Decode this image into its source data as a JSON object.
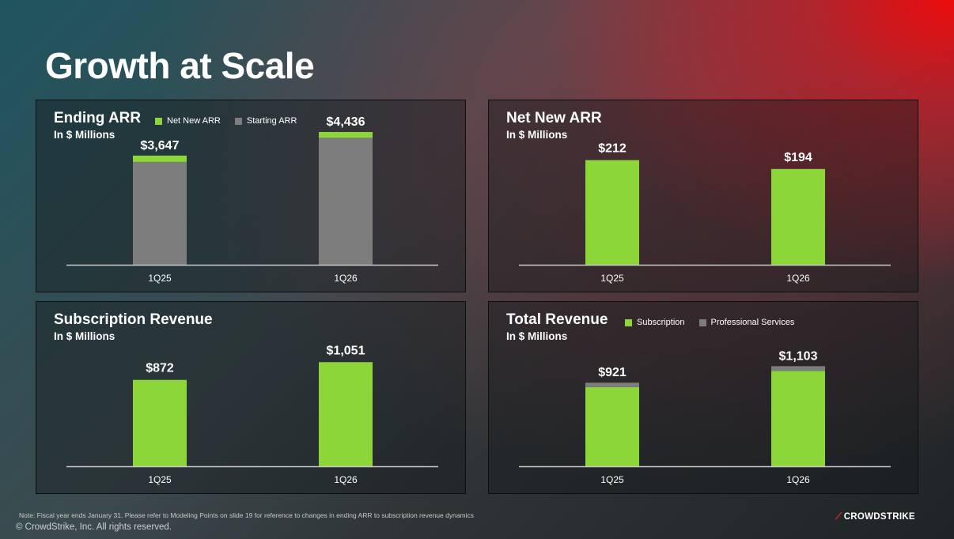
{
  "slide_title": "Growth at Scale",
  "colors": {
    "green": "#8cd63a",
    "gray": "#7d7d7d",
    "axis": "#c9c9c9"
  },
  "panels": {
    "ending_arr": {
      "title": "Ending ARR",
      "subtitle": "In $ Millions",
      "legend": [
        {
          "label": "Net New ARR",
          "color": "#8cd63a"
        },
        {
          "label": "Starting ARR",
          "color": "#7d7d7d"
        }
      ]
    },
    "net_new_arr": {
      "title": "Net New ARR",
      "subtitle": "In $ Millions"
    },
    "sub_rev": {
      "title": "Subscription Revenue",
      "subtitle": "In $ Millions"
    },
    "total_rev": {
      "title": "Total Revenue",
      "subtitle": "In $ Millions",
      "legend": [
        {
          "label": "Subscription",
          "color": "#8cd63a"
        },
        {
          "label": "Professional Services",
          "color": "#7d7d7d"
        }
      ]
    }
  },
  "chart_data": [
    {
      "type": "bar",
      "stacked": true,
      "title": "Ending ARR",
      "categories": [
        "1Q25",
        "1Q26"
      ],
      "series": [
        {
          "name": "Starting ARR",
          "values": [
            3435,
            4242
          ]
        },
        {
          "name": "Net New ARR",
          "values": [
            212,
            194
          ]
        }
      ],
      "totals": [
        "$3,647",
        "$4,436"
      ],
      "ylim": [
        0,
        4700
      ]
    },
    {
      "type": "bar",
      "title": "Net New ARR",
      "categories": [
        "1Q25",
        "1Q26"
      ],
      "values": [
        212,
        194
      ],
      "labels": [
        "$212",
        "$194"
      ],
      "ylim": [
        0,
        285
      ]
    },
    {
      "type": "bar",
      "title": "Subscription Revenue",
      "categories": [
        "1Q25",
        "1Q26"
      ],
      "values": [
        872,
        1051
      ],
      "labels": [
        "$872",
        "$1,051"
      ],
      "ylim": [
        0,
        1420
      ]
    },
    {
      "type": "bar",
      "stacked": true,
      "title": "Total Revenue",
      "categories": [
        "1Q25",
        "1Q26"
      ],
      "series": [
        {
          "name": "Subscription",
          "values": [
            872,
            1051
          ]
        },
        {
          "name": "Professional Services",
          "values": [
            49,
            52
          ]
        }
      ],
      "totals": [
        "$921",
        "$1,103"
      ],
      "ylim": [
        0,
        1550
      ]
    }
  ],
  "footer": {
    "note": "Note: Fiscal year ends January 31.  Please refer to Modeling Points on slide 19 for reference to changes in ending ARR to subscription revenue dynamics",
    "copyright": "© CrowdStrike, Inc. All rights reserved.",
    "logo": "CROWDSTRIKE"
  }
}
